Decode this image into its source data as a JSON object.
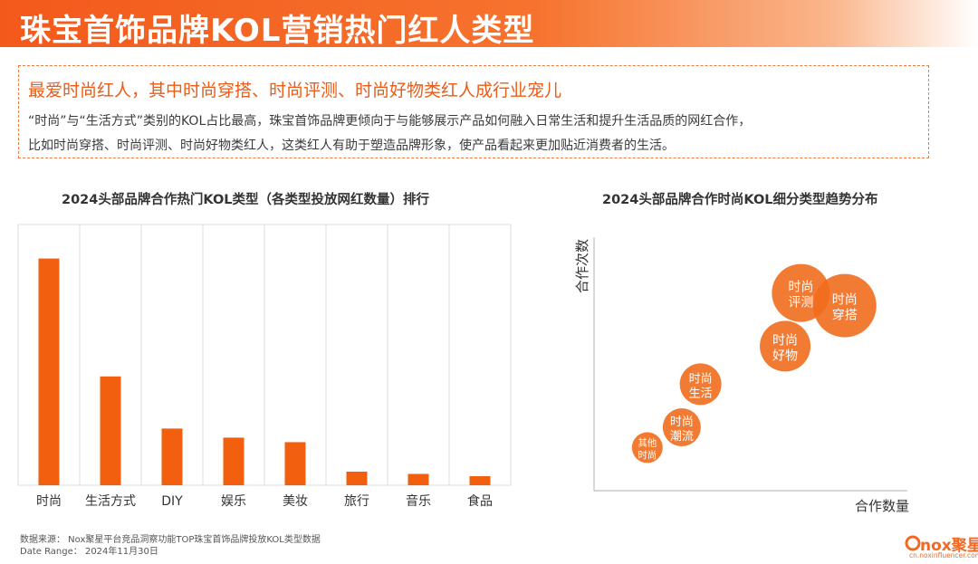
{
  "page": {
    "title": "珠宝首饰品牌KOL营销热门红人类型"
  },
  "summary": {
    "heading": "最爱时尚红人，其中时尚穿搭、时尚评测、时尚好物类红人成行业宠儿",
    "line1": "“时尚”与“生活方式”类别的KOL占比最高，珠宝首饰品牌更倾向于与能够展示产品如何融入日常生活和提升生活品质的网红合作，",
    "line2": "比如时尚穿搭、时尚评测、时尚好物类红人，这类红人有助于塑造品牌形象，使产品看起来更加贴近消费者的生活。"
  },
  "colors": {
    "accent": "#f2600f",
    "bubble": "#f16d1d"
  },
  "chart_data": [
    {
      "type": "bar",
      "title": "2024头部品牌合作热门KOL类型（各类型投放网红数量）排行",
      "categories": [
        "时尚",
        "生活方式",
        "DIY",
        "娱乐",
        "美妆",
        "旅行",
        "音乐",
        "食品"
      ],
      "values": [
        100,
        48,
        25,
        21,
        19,
        6,
        5,
        4
      ],
      "ylim": [
        0,
        115
      ],
      "grid": "vertical",
      "legend": "none"
    },
    {
      "type": "scatter",
      "title": "2024头部品牌合作时尚KOL细分类型趋势分布",
      "xlabel": "合作数量",
      "ylabel": "合作次数",
      "xlim": [
        0,
        100
      ],
      "ylim": [
        0,
        100
      ],
      "points": [
        {
          "label": "时尚评测",
          "x": 66,
          "y": 78,
          "size": 32
        },
        {
          "label": "时尚穿搭",
          "x": 80,
          "y": 73,
          "size": 35
        },
        {
          "label": "时尚好物",
          "x": 61,
          "y": 57,
          "size": 28
        },
        {
          "label": "时尚生活",
          "x": 34,
          "y": 42,
          "size": 23
        },
        {
          "label": "时尚潮流",
          "x": 28,
          "y": 25,
          "size": 21
        },
        {
          "label": "其他时尚",
          "x": 17,
          "y": 17,
          "size": 17
        }
      ]
    }
  ],
  "footer": {
    "source": "数据来源：     Nox聚星平台竞品洞察功能TOP珠宝首饰品牌投放KOL类型数据",
    "date": "Date  Range：  2024年11月30日"
  },
  "logo": {
    "brand": "nox聚星",
    "url": "cn.noxinfluencer.com"
  }
}
